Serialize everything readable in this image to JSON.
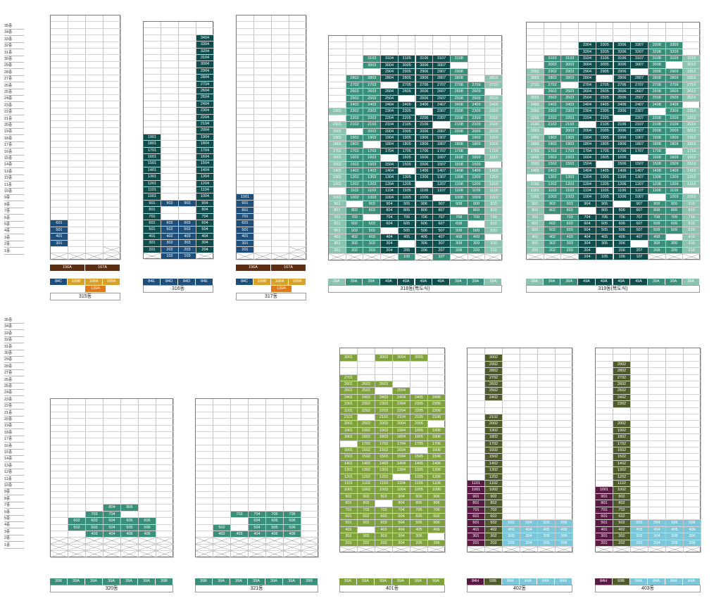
{
  "colors": {
    "navy": "#1e4f7a",
    "teal_dark": "#0f4d4d",
    "teal": "#3a8f7a",
    "teal_light": "#8cc3b0",
    "green": "#7fa23c",
    "olive": "#4f5b2a",
    "purple": "#5b1a44",
    "skyblue": "#7cc6da",
    "brown": "#5c2e14",
    "orange": "#e07a1c",
    "gold": "#d8a22a"
  },
  "floor_labels": [
    "35층",
    "34층",
    "33층",
    "32층",
    "31층",
    "30층",
    "29층",
    "28층",
    "27층",
    "26층",
    "25층",
    "24층",
    "23층",
    "22층",
    "21층",
    "20층",
    "19층",
    "18층",
    "17층",
    "16층",
    "15층",
    "14층",
    "13층",
    "12층",
    "11층",
    "10층",
    "9층",
    "8층",
    "7층",
    "6층",
    "5층",
    "4층",
    "3층",
    "2층",
    "1층"
  ],
  "buildings": [
    {
      "id": "b315",
      "name": "315동",
      "legend": [
        {
          "t": "84C",
          "c": "navy"
        },
        {
          "t": "109B",
          "c": "gold"
        },
        {
          "t": "109A",
          "c": "gold"
        },
        {
          "t": "109A",
          "c": "gold"
        }
      ],
      "legend_top": [
        {
          "t": "156A",
          "c": "brown"
        },
        {
          "t": "167A",
          "c": "brown"
        }
      ],
      "legend_mid": [
        {
          "t": "139A",
          "c": "orange"
        }
      ]
    },
    {
      "id": "b316",
      "name": "316동",
      "legend": [
        {
          "t": "84E",
          "c": "navy"
        },
        {
          "t": "84D",
          "c": "navy"
        },
        {
          "t": "84D",
          "c": "navy"
        },
        {
          "t": "84E",
          "c": "navy"
        }
      ]
    },
    {
      "id": "b317",
      "name": "317동",
      "legend": [
        {
          "t": "84C",
          "c": "navy"
        },
        {
          "t": "109B",
          "c": "gold"
        },
        {
          "t": "109A",
          "c": "gold"
        },
        {
          "t": "109A",
          "c": "gold"
        }
      ],
      "legend_top": [
        {
          "t": "156A",
          "c": "brown"
        },
        {
          "t": "167A",
          "c": "brown"
        }
      ],
      "legend_mid": [
        {
          "t": "139A",
          "c": "orange"
        }
      ]
    },
    {
      "id": "b318",
      "name": "318동(복도식)",
      "legend": [
        {
          "t": "29A",
          "c": "teal_light"
        },
        {
          "t": "39A",
          "c": "teal"
        },
        {
          "t": "39A",
          "c": "teal"
        },
        {
          "t": "49A",
          "c": "teal_dark"
        },
        {
          "t": "49A",
          "c": "teal_dark"
        },
        {
          "t": "49A",
          "c": "teal_dark"
        },
        {
          "t": "49A",
          "c": "teal_dark"
        },
        {
          "t": "39A",
          "c": "teal"
        },
        {
          "t": "39A",
          "c": "teal"
        },
        {
          "t": "29A",
          "c": "teal_light"
        }
      ]
    },
    {
      "id": "b319",
      "name": "319동(복도식)",
      "legend": [
        {
          "t": "29A",
          "c": "teal_light"
        },
        {
          "t": "39A",
          "c": "teal"
        },
        {
          "t": "39A",
          "c": "teal"
        },
        {
          "t": "49A",
          "c": "teal_dark"
        },
        {
          "t": "49A",
          "c": "teal_dark"
        },
        {
          "t": "49A",
          "c": "teal_dark"
        },
        {
          "t": "49A",
          "c": "teal_dark"
        },
        {
          "t": "39A",
          "c": "teal"
        },
        {
          "t": "39A",
          "c": "teal"
        },
        {
          "t": "29A",
          "c": "teal_light"
        }
      ]
    },
    {
      "id": "b320",
      "name": "320동",
      "legend": [
        {
          "t": "39B",
          "c": "teal"
        },
        {
          "t": "39A",
          "c": "teal"
        },
        {
          "t": "39A",
          "c": "teal"
        },
        {
          "t": "39A",
          "c": "teal"
        },
        {
          "t": "39A",
          "c": "teal"
        },
        {
          "t": "39A",
          "c": "teal"
        },
        {
          "t": "39B",
          "c": "teal"
        }
      ]
    },
    {
      "id": "b321",
      "name": "321동",
      "legend": [
        {
          "t": "39B",
          "c": "teal"
        },
        {
          "t": "39A",
          "c": "teal"
        },
        {
          "t": "39A",
          "c": "teal"
        },
        {
          "t": "39A",
          "c": "teal"
        },
        {
          "t": "39A",
          "c": "teal"
        },
        {
          "t": "39A",
          "c": "teal"
        },
        {
          "t": "39B",
          "c": "teal"
        }
      ]
    },
    {
      "id": "b401",
      "name": "401동",
      "legend": [
        {
          "t": "59A",
          "c": "green"
        },
        {
          "t": "59A",
          "c": "green"
        },
        {
          "t": "59A",
          "c": "green"
        },
        {
          "t": "59A",
          "c": "green"
        },
        {
          "t": "59A",
          "c": "green"
        },
        {
          "t": "59A",
          "c": "green"
        }
      ]
    },
    {
      "id": "b402",
      "name": "402동",
      "legend": [
        {
          "t": "84H",
          "c": "purple"
        },
        {
          "t": "59B",
          "c": "olive"
        },
        {
          "t": "84A",
          "c": "skyblue"
        },
        {
          "t": "84A",
          "c": "skyblue"
        },
        {
          "t": "84A",
          "c": "skyblue"
        },
        {
          "t": "84A",
          "c": "skyblue"
        }
      ]
    },
    {
      "id": "b403",
      "name": "403동",
      "legend": [
        {
          "t": "84H",
          "c": "purple"
        },
        {
          "t": "59B",
          "c": "olive"
        },
        {
          "t": "84A",
          "c": "skyblue"
        },
        {
          "t": "84A",
          "c": "skyblue"
        },
        {
          "t": "84A",
          "c": "skyblue"
        },
        {
          "t": "84A",
          "c": "skyblue"
        }
      ]
    }
  ],
  "units": {
    "b315": {
      "cols": 4,
      "floors": 34,
      "filled": [
        [
          "601",
          "401",
          "501",
          "301"
        ]
      ],
      "col0_floors": [
        6,
        5,
        4,
        3
      ],
      "col0_labels": [
        "601",
        "501",
        "401",
        "301"
      ]
    },
    "b316_col3": [
      "3404",
      "3304",
      "3204",
      "3104",
      "3004",
      "2904",
      "2804",
      "2704",
      "2604",
      "2504",
      "2404",
      "2304",
      "2204",
      "2104",
      "2004",
      "1904",
      "1804",
      "1704",
      "1604",
      "1504",
      "1404",
      "1304",
      "1204",
      "1104",
      "1004",
      "904",
      "804",
      "704",
      "604",
      "504",
      "404",
      "304",
      "204"
    ],
    "b316_col0": [
      "1901",
      "1801",
      "1701",
      "1601",
      "1501",
      "1401",
      "1301",
      "1201",
      "1101",
      "1001",
      "901",
      "801",
      "701",
      "601",
      "501",
      "401",
      "301",
      "201"
    ],
    "b316_row9": [
      "902",
      "903"
    ],
    "b316_mid": [
      [
        "602",
        "603"
      ],
      [
        "502",
        "503"
      ],
      [
        "402",
        "403"
      ],
      [
        "302",
        "303"
      ],
      [
        "202",
        "203"
      ],
      [
        "102",
        "103"
      ]
    ],
    "b317_col0": [
      "1001",
      "901",
      "801",
      "701",
      "601",
      "501",
      "401",
      "301",
      "201"
    ]
  }
}
